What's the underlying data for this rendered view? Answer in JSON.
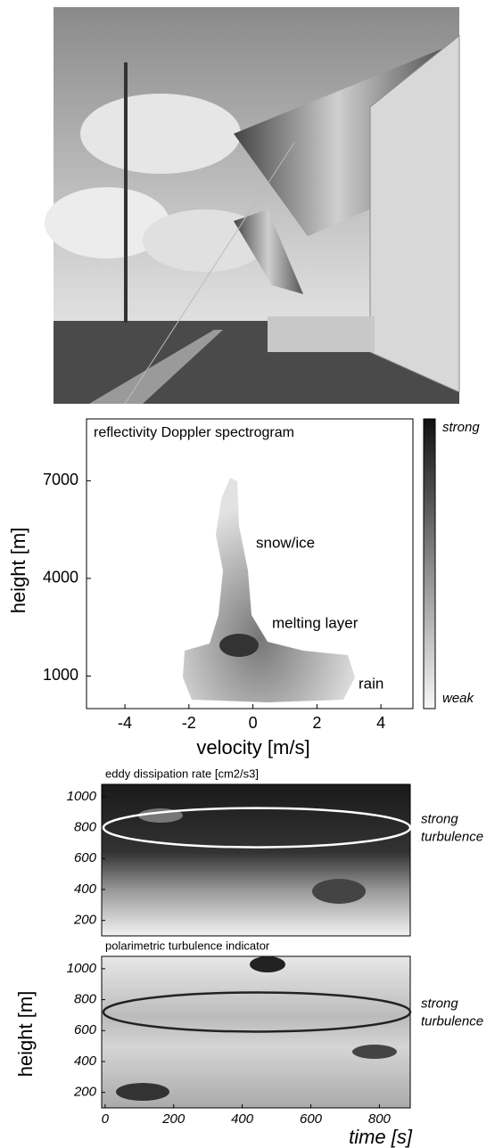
{
  "spectrogram": {
    "title": "reflectivity Doppler spectrogram",
    "xlabel": "velocity [m/s]",
    "ylabel": "height [m]",
    "xlim": [
      -5.2,
      5.0
    ],
    "ylim": [
      0,
      8900
    ],
    "xticks": [
      -4,
      -2,
      0,
      2,
      4
    ],
    "yticks": [
      1000,
      4000,
      7000
    ],
    "annotations": [
      "snow/ice",
      "melting layer",
      "rain"
    ],
    "colorbar": {
      "high": "strong",
      "low": "weak"
    }
  },
  "turbulence": {
    "ylabel": "height [m]",
    "xlabel": "time [s]",
    "xlim": [
      -10,
      890
    ],
    "xticks": [
      0,
      200,
      400,
      600,
      800
    ],
    "panels": [
      {
        "title": "eddy dissipation rate [cm2/s3]",
        "ylim": [
          100,
          1080
        ],
        "yticks": [
          200,
          400,
          600,
          800,
          1000
        ],
        "annotation": [
          "strong",
          "turbulence"
        ]
      },
      {
        "title": "polarimetric turbulence indicator",
        "ylim": [
          100,
          1080
        ],
        "yticks": [
          200,
          400,
          600,
          800,
          1000
        ],
        "annotation": [
          "strong",
          "turbulence"
        ]
      }
    ]
  }
}
